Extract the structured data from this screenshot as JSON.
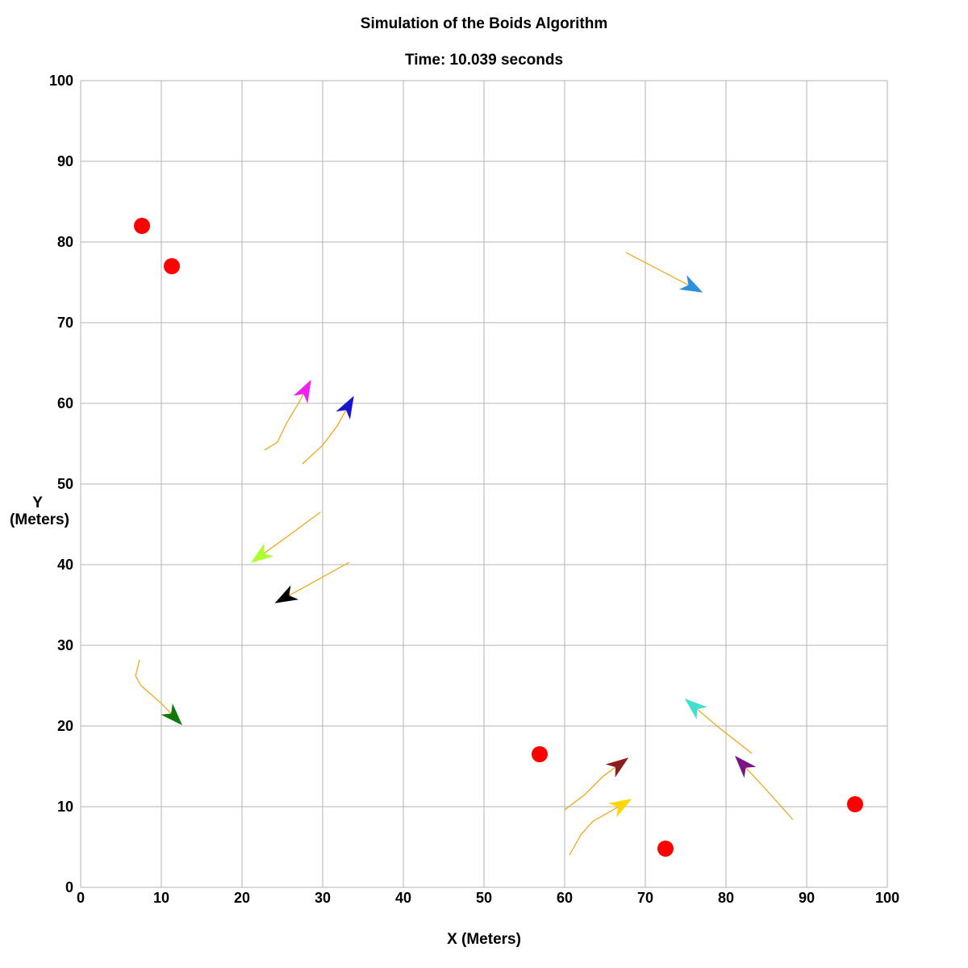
{
  "chart_data": {
    "type": "scatter",
    "title": "Simulation of the Boids Algorithm",
    "subtitle": "Time: 10.039 seconds",
    "xlabel": "X (Meters)",
    "ylabel_lines": [
      "Y",
      "(Meters)"
    ],
    "xlim": [
      0,
      100
    ],
    "ylim": [
      0,
      100
    ],
    "xticks": [
      0,
      10,
      20,
      30,
      40,
      50,
      60,
      70,
      80,
      90,
      100
    ],
    "yticks": [
      0,
      10,
      20,
      30,
      40,
      50,
      60,
      70,
      80,
      90,
      100
    ],
    "grid": true,
    "trail_color": "#f0a30a",
    "obstacle_color": "#ff0000",
    "obstacles": [
      {
        "x": 7.6,
        "y": 82.0
      },
      {
        "x": 11.3,
        "y": 77.0
      },
      {
        "x": 56.9,
        "y": 16.5
      },
      {
        "x": 72.5,
        "y": 4.8
      },
      {
        "x": 96.0,
        "y": 10.3
      }
    ],
    "boids": [
      {
        "color": "#2e8fdc",
        "head": [
          77.0,
          73.8
        ],
        "trail": [
          [
            67.6,
            78.7
          ],
          [
            72.0,
            76.4
          ],
          [
            77.0,
            73.8
          ]
        ]
      },
      {
        "color": "#ee22ee",
        "head": [
          28.5,
          62.8
        ],
        "trail": [
          [
            22.8,
            54.2
          ],
          [
            24.4,
            55.2
          ],
          [
            25.5,
            57.5
          ],
          [
            27.0,
            60.0
          ],
          [
            28.5,
            62.8
          ]
        ]
      },
      {
        "color": "#1616cc",
        "head": [
          33.8,
          60.8
        ],
        "trail": [
          [
            27.5,
            52.5
          ],
          [
            30.0,
            54.8
          ],
          [
            31.8,
            57.2
          ],
          [
            33.8,
            60.8
          ]
        ]
      },
      {
        "color": "#adff2f",
        "head": [
          21.2,
          40.3
        ],
        "trail": [
          [
            29.7,
            46.5
          ],
          [
            25.5,
            43.4
          ],
          [
            21.2,
            40.3
          ]
        ]
      },
      {
        "color": "#000000",
        "head": [
          24.2,
          35.3
        ],
        "trail": [
          [
            33.3,
            40.3
          ],
          [
            28.8,
            37.8
          ],
          [
            24.2,
            35.3
          ]
        ]
      },
      {
        "color": "#0e7a0e",
        "head": [
          12.5,
          20.2
        ],
        "trail": [
          [
            7.3,
            28.2
          ],
          [
            6.8,
            26.2
          ],
          [
            7.5,
            25.0
          ],
          [
            10.0,
            22.8
          ],
          [
            12.5,
            20.2
          ]
        ]
      },
      {
        "color": "#40e0d0",
        "head": [
          75.0,
          23.3
        ],
        "trail": [
          [
            83.2,
            16.6
          ],
          [
            79.0,
            19.9
          ],
          [
            75.0,
            23.3
          ]
        ]
      },
      {
        "color": "#8b1e1e",
        "head": [
          67.8,
          16.0
        ],
        "trail": [
          [
            60.0,
            9.6
          ],
          [
            62.5,
            11.5
          ],
          [
            64.8,
            13.8
          ],
          [
            67.8,
            16.0
          ]
        ]
      },
      {
        "color": "#7b1585",
        "head": [
          81.2,
          16.2
        ],
        "trail": [
          [
            88.3,
            8.4
          ],
          [
            84.8,
            12.3
          ],
          [
            81.2,
            16.2
          ]
        ]
      },
      {
        "color": "#ffd700",
        "head": [
          68.2,
          10.9
        ],
        "trail": [
          [
            60.6,
            4.0
          ],
          [
            62.0,
            6.5
          ],
          [
            63.5,
            8.2
          ],
          [
            66.0,
            9.6
          ],
          [
            68.2,
            10.9
          ]
        ]
      }
    ]
  }
}
